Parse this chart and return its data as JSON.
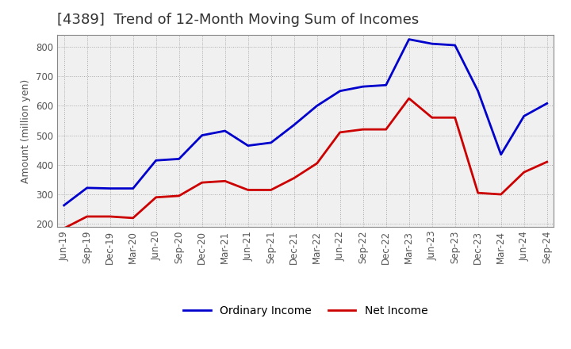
{
  "title": "[4389]  Trend of 12-Month Moving Sum of Incomes",
  "ylabel": "Amount (million yen)",
  "ylim": [
    190,
    840
  ],
  "yticks": [
    200,
    300,
    400,
    500,
    600,
    700,
    800
  ],
  "x_labels": [
    "Jun-19",
    "Sep-19",
    "Dec-19",
    "Mar-20",
    "Jun-20",
    "Sep-20",
    "Dec-20",
    "Mar-21",
    "Jun-21",
    "Sep-21",
    "Dec-21",
    "Mar-22",
    "Jun-22",
    "Sep-22",
    "Dec-22",
    "Mar-23",
    "Jun-23",
    "Sep-23",
    "Dec-23",
    "Mar-24",
    "Jun-24",
    "Sep-24"
  ],
  "ordinary_income": [
    263,
    322,
    320,
    320,
    415,
    420,
    500,
    515,
    465,
    475,
    535,
    600,
    650,
    665,
    670,
    825,
    810,
    805,
    650,
    435,
    565,
    608
  ],
  "net_income": [
    185,
    225,
    225,
    220,
    290,
    295,
    340,
    345,
    315,
    315,
    355,
    405,
    510,
    520,
    520,
    625,
    560,
    560,
    305,
    300,
    375,
    410
  ],
  "ordinary_color": "#0000cc",
  "net_color": "#cc0000",
  "grid_color": "#aaaaaa",
  "grid_linestyle": ":",
  "plot_bg_color": "#f0f0f0",
  "fig_bg_color": "#ffffff",
  "title_fontsize": 13,
  "title_color": "#333333",
  "legend_fontsize": 10,
  "axis_fontsize": 8.5,
  "ylabel_fontsize": 9,
  "tick_color": "#555555",
  "spine_color": "#888888",
  "linewidth": 2.0
}
